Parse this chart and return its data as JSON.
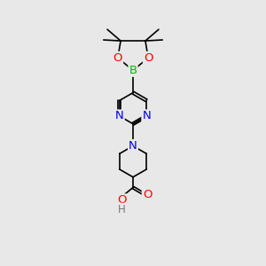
{
  "bg_color": "#e8e8e8",
  "bond_color": "#000000",
  "bond_width": 1.2,
  "atom_colors": {
    "B": "#00bb00",
    "O": "#ff0000",
    "N": "#0000ee",
    "C": "#000000",
    "H": "#777777"
  },
  "font_size": 8.5,
  "fig_size": [
    3.0,
    3.0
  ],
  "dpi": 100,
  "xlim": [
    0,
    10
  ],
  "ylim": [
    0,
    14
  ]
}
